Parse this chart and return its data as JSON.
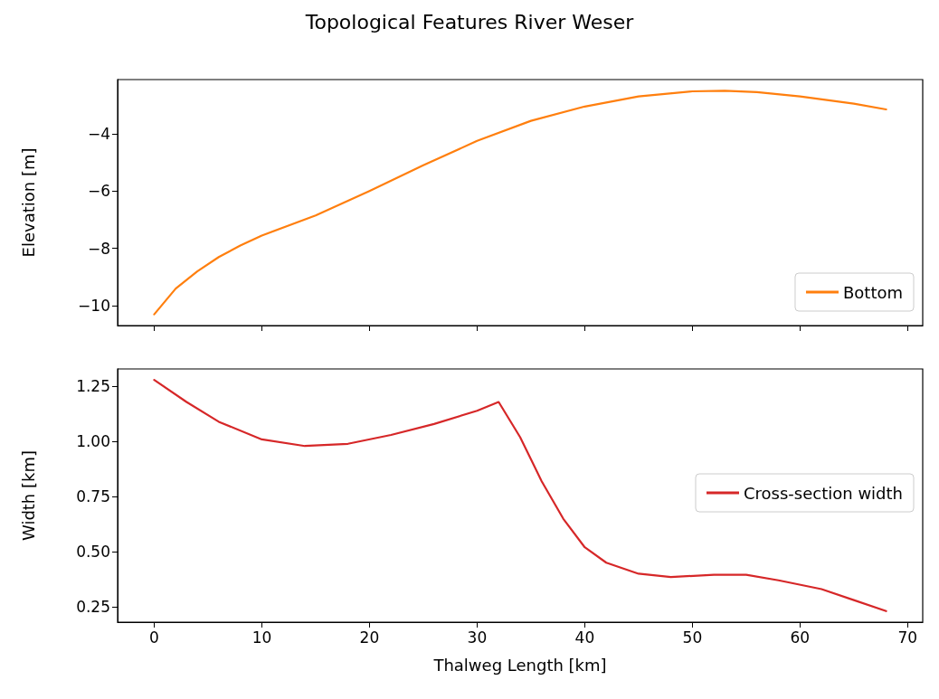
{
  "chart_data": [
    {
      "type": "line",
      "title": "Topological Features River Weser",
      "ylabel": "Elevation [m]",
      "xlim": [
        -3.4,
        71.4
      ],
      "xticks": [
        0,
        10,
        20,
        30,
        40,
        50,
        60,
        70
      ],
      "ylim": [
        -10.69,
        -2.11
      ],
      "yticks": [
        {
          "value": -10,
          "label": "−10"
        },
        {
          "value": -8,
          "label": "−8"
        },
        {
          "value": -6,
          "label": "−6"
        },
        {
          "value": -4,
          "label": "−4"
        }
      ],
      "tick_labels": "y",
      "legend": "bottom right",
      "grid": false,
      "marker": "none",
      "line_style": "solid",
      "x": [
        0,
        2,
        4,
        6,
        8,
        10,
        15,
        20,
        25,
        30,
        35,
        40,
        45,
        50,
        53,
        56,
        60,
        65,
        68
      ],
      "series": [
        {
          "name": "Bottom",
          "color": "#ff7f0e",
          "values": [
            -10.3,
            -9.4,
            -8.8,
            -8.3,
            -7.9,
            -7.55,
            -6.85,
            -6.0,
            -5.1,
            -4.25,
            -3.55,
            -3.05,
            -2.7,
            -2.52,
            -2.5,
            -2.55,
            -2.7,
            -2.95,
            -3.15
          ]
        }
      ]
    },
    {
      "type": "line",
      "xlabel": "Thalweg Length [km]",
      "ylabel": "Width [km]",
      "xlim": [
        -3.4,
        71.4
      ],
      "xticks": [
        0,
        10,
        20,
        30,
        40,
        50,
        60,
        70
      ],
      "ylim": [
        0.18,
        1.33
      ],
      "yticks": [
        0.25,
        {
          "value": 0.5,
          "label": "0.50"
        },
        0.75,
        {
          "value": 1,
          "label": "1.00"
        },
        1.25
      ],
      "legend": "right",
      "grid": false,
      "marker": "none",
      "line_style": "solid",
      "x": [
        0,
        3,
        6,
        10,
        14,
        18,
        22,
        26,
        30,
        32,
        34,
        36,
        38,
        40,
        42,
        45,
        48,
        52,
        55,
        58,
        62,
        65,
        68
      ],
      "series": [
        {
          "name": "Cross-section width",
          "color": "#d62728",
          "values": [
            1.28,
            1.18,
            1.09,
            1.01,
            0.98,
            0.99,
            1.03,
            1.08,
            1.14,
            1.18,
            1.02,
            0.82,
            0.65,
            0.52,
            0.45,
            0.4,
            0.385,
            0.395,
            0.395,
            0.37,
            0.33,
            0.28,
            0.23
          ]
        }
      ]
    }
  ]
}
